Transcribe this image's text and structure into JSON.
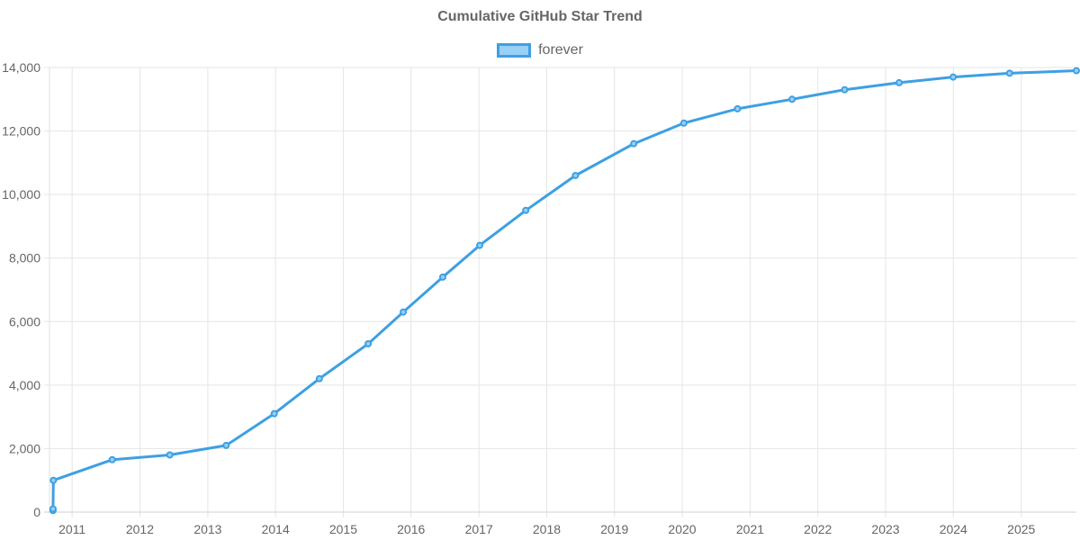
{
  "chart_data": {
    "type": "line",
    "title": "Cumulative GitHub Star Trend",
    "series": [
      {
        "name": "forever",
        "color": "#3da0e3",
        "fill": "#9ad0f5",
        "points": [
          [
            "2010-09-20",
            50
          ],
          [
            "2010-09-20",
            100
          ],
          [
            "2010-09-22",
            1000
          ],
          [
            "2011-08-05",
            1650
          ],
          [
            "2012-06-10",
            1800
          ],
          [
            "2013-04-10",
            2100
          ],
          [
            "2013-12-25",
            3100
          ],
          [
            "2014-08-25",
            4200
          ],
          [
            "2015-05-15",
            5300
          ],
          [
            "2015-11-20",
            6300
          ],
          [
            "2016-06-20",
            7400
          ],
          [
            "2017-01-05",
            8400
          ],
          [
            "2017-09-10",
            9500
          ],
          [
            "2018-06-05",
            10600
          ],
          [
            "2019-04-15",
            11600
          ],
          [
            "2020-01-10",
            12250
          ],
          [
            "2020-10-25",
            12700
          ],
          [
            "2021-08-15",
            13000
          ],
          [
            "2022-05-25",
            13300
          ],
          [
            "2023-03-15",
            13520
          ],
          [
            "2023-12-31",
            13700
          ],
          [
            "2024-10-30",
            13820
          ],
          [
            "2025-10-25",
            13900
          ]
        ]
      }
    ],
    "xaxis": {
      "type": "time",
      "ticks": [
        "2011",
        "2012",
        "2013",
        "2014",
        "2015",
        "2016",
        "2017",
        "2018",
        "2019",
        "2020",
        "2021",
        "2022",
        "2023",
        "2024",
        "2025"
      ],
      "range": [
        "2010-09-01",
        "2025-10-25"
      ]
    },
    "yaxis": {
      "range": [
        0,
        14000
      ],
      "ticks": [
        0,
        2000,
        4000,
        6000,
        8000,
        10000,
        12000,
        14000
      ],
      "tick_labels": [
        "0",
        "2,000",
        "4,000",
        "6,000",
        "8,000",
        "10,000",
        "12,000",
        "14,000"
      ]
    },
    "grid": true,
    "legend": "top-center"
  }
}
